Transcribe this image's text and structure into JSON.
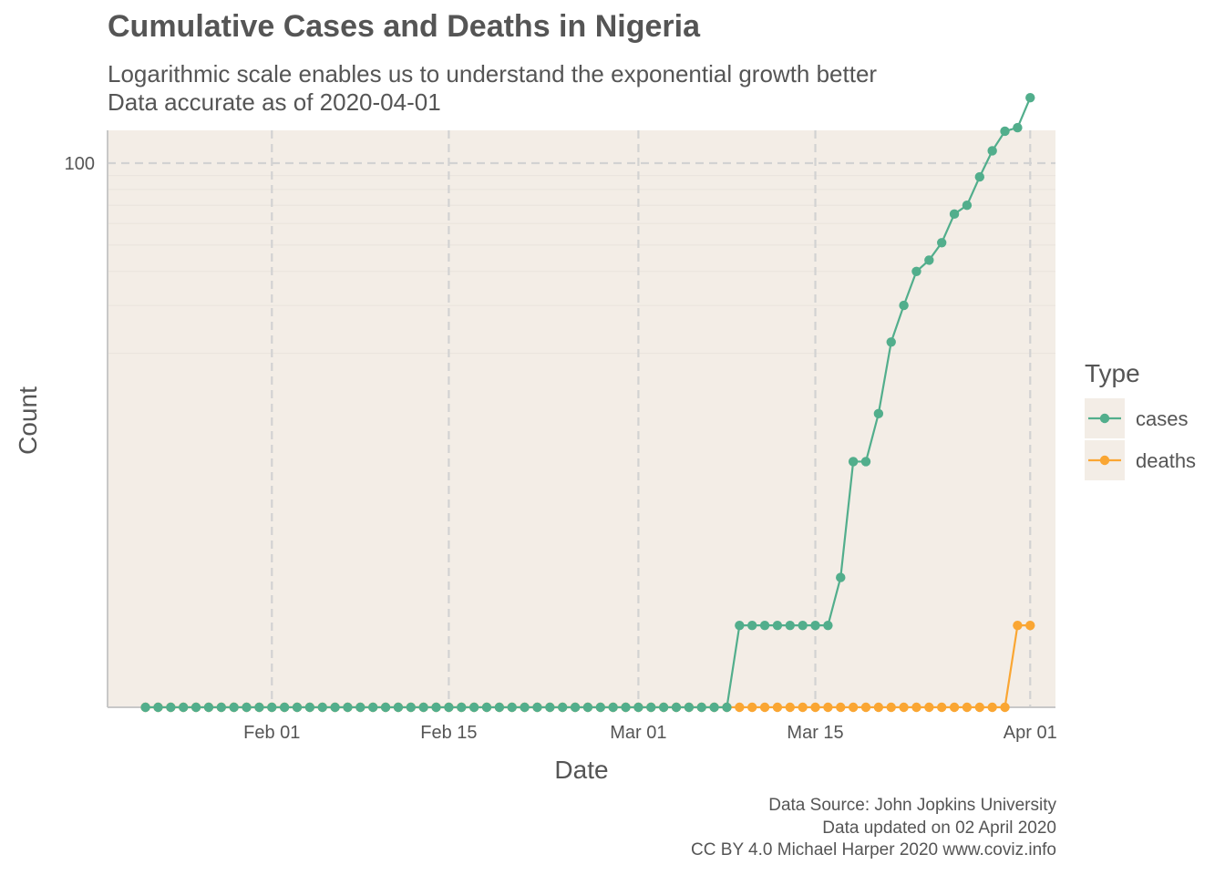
{
  "title": "Cumulative Cases and Deaths in Nigeria",
  "subtitle_lines": [
    "Logarithmic scale enables us to understand the exponential growth better",
    "Data accurate as of 2020-04-01"
  ],
  "caption_lines": [
    "Data Source: John Jopkins University",
    "Data updated on 02 April 2020",
    "CC BY 4.0 Michael Harper 2020 www.coviz.info"
  ],
  "colors": {
    "panel_bg": "#F3EDE6",
    "major_grid": "#D2D2D2",
    "minor_grid": "#E9E3DC",
    "axis_line": "#C8C8C8",
    "cases": "#52AE8C",
    "deaths": "#FAA633",
    "text": "#555555"
  },
  "chart_data": {
    "type": "line",
    "xlabel": "Date",
    "ylabel": "Count",
    "x_scale": "date",
    "y_scale": "log10",
    "xlim": [
      "2020-01-19",
      "2020-04-03"
    ],
    "ylim": [
      1,
      132
    ],
    "x_ticks": [
      {
        "date": "2020-02-01",
        "label": "Feb 01"
      },
      {
        "date": "2020-02-15",
        "label": "Feb 15"
      },
      {
        "date": "2020-03-01",
        "label": "Mar 01"
      },
      {
        "date": "2020-03-15",
        "label": "Mar 15"
      },
      {
        "date": "2020-04-01",
        "label": "Apr 01"
      }
    ],
    "y_ticks": [
      {
        "value": 100,
        "label": "100"
      }
    ],
    "grid": true,
    "legend": {
      "title": "Type",
      "position": "right"
    },
    "x": [
      "2020-01-22",
      "2020-01-23",
      "2020-01-24",
      "2020-01-25",
      "2020-01-26",
      "2020-01-27",
      "2020-01-28",
      "2020-01-29",
      "2020-01-30",
      "2020-01-31",
      "2020-02-01",
      "2020-02-02",
      "2020-02-03",
      "2020-02-04",
      "2020-02-05",
      "2020-02-06",
      "2020-02-07",
      "2020-02-08",
      "2020-02-09",
      "2020-02-10",
      "2020-02-11",
      "2020-02-12",
      "2020-02-13",
      "2020-02-14",
      "2020-02-15",
      "2020-02-16",
      "2020-02-17",
      "2020-02-18",
      "2020-02-19",
      "2020-02-20",
      "2020-02-21",
      "2020-02-22",
      "2020-02-23",
      "2020-02-24",
      "2020-02-25",
      "2020-02-26",
      "2020-02-27",
      "2020-02-28",
      "2020-02-29",
      "2020-03-01",
      "2020-03-02",
      "2020-03-03",
      "2020-03-04",
      "2020-03-05",
      "2020-03-06",
      "2020-03-07",
      "2020-03-08",
      "2020-03-09",
      "2020-03-10",
      "2020-03-11",
      "2020-03-12",
      "2020-03-13",
      "2020-03-14",
      "2020-03-15",
      "2020-03-16",
      "2020-03-17",
      "2020-03-18",
      "2020-03-19",
      "2020-03-20",
      "2020-03-21",
      "2020-03-22",
      "2020-03-23",
      "2020-03-24",
      "2020-03-25",
      "2020-03-26",
      "2020-03-27",
      "2020-03-28",
      "2020-03-29",
      "2020-03-30",
      "2020-03-31",
      "2020-04-01"
    ],
    "series": [
      {
        "name": "cases",
        "color": "#52AE8C",
        "values": [
          0,
          0,
          0,
          0,
          0,
          0,
          0,
          0,
          0,
          0,
          0,
          0,
          0,
          0,
          0,
          0,
          0,
          0,
          0,
          0,
          0,
          0,
          0,
          0,
          0,
          0,
          0,
          0,
          0,
          0,
          0,
          0,
          0,
          0,
          0,
          0,
          0,
          1,
          1,
          1,
          1,
          1,
          1,
          1,
          1,
          1,
          1,
          2,
          2,
          2,
          2,
          2,
          2,
          2,
          2,
          3,
          8,
          8,
          12,
          22,
          30,
          40,
          44,
          51,
          65,
          70,
          89,
          111,
          131,
          135,
          174
        ]
      },
      {
        "name": "deaths",
        "color": "#FAA633",
        "values": [
          0,
          0,
          0,
          0,
          0,
          0,
          0,
          0,
          0,
          0,
          0,
          0,
          0,
          0,
          0,
          0,
          0,
          0,
          0,
          0,
          0,
          0,
          0,
          0,
          0,
          0,
          0,
          0,
          0,
          0,
          0,
          0,
          0,
          0,
          0,
          0,
          0,
          0,
          0,
          0,
          0,
          0,
          0,
          0,
          0,
          0,
          0,
          0,
          0,
          0,
          0,
          0,
          0,
          0,
          0,
          0,
          0,
          0,
          0,
          0,
          0,
          1,
          1,
          1,
          1,
          1,
          1,
          1,
          1,
          2,
          2
        ]
      }
    ]
  }
}
